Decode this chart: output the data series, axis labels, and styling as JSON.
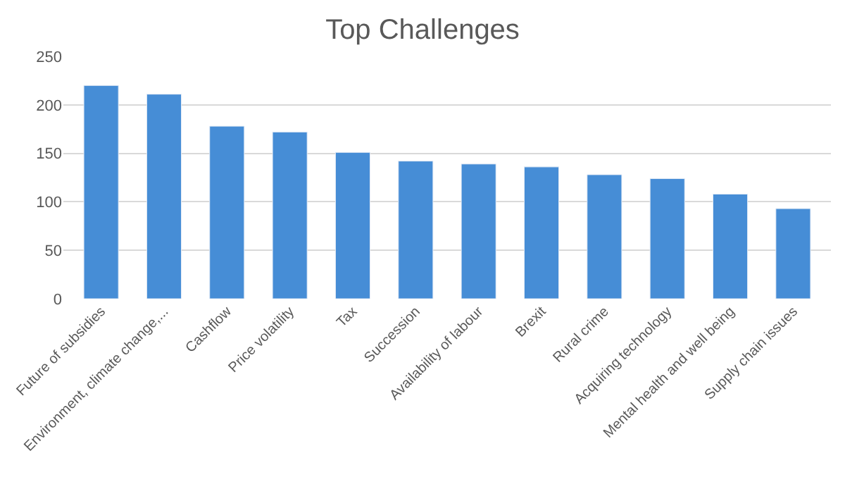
{
  "chart_data": {
    "type": "bar",
    "title": "Top Challenges",
    "categories": [
      "Future of subsidies",
      "Environment, climate change,...",
      "Cashflow",
      "Price volatility",
      "Tax",
      "Succession",
      "Availability of labour",
      "Brexit",
      "Rural crime",
      "Acquiring technology",
      "Mental health and well being",
      "Supply chain issues"
    ],
    "values": [
      220,
      211,
      178,
      172,
      151,
      142,
      139,
      136,
      128,
      124,
      108,
      93
    ],
    "color": "#468dd6",
    "ylim": [
      0,
      250
    ],
    "yticks": [
      0,
      50,
      100,
      150,
      200,
      250
    ],
    "grid": "y"
  }
}
